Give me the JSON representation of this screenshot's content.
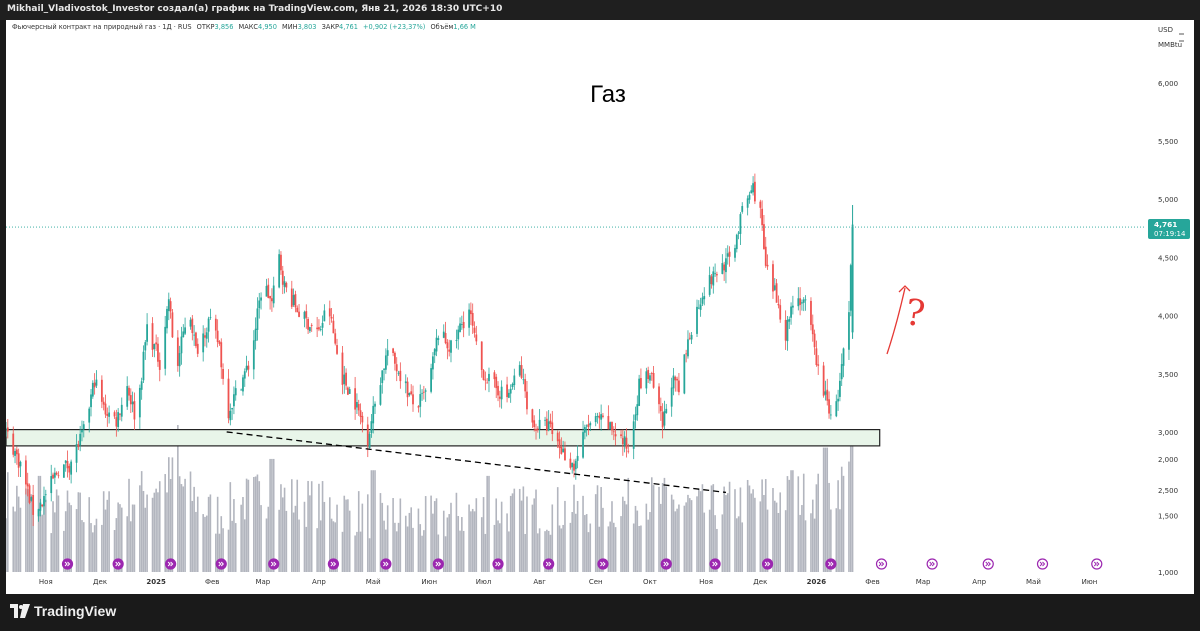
{
  "header": {
    "caption": "Mikhail_Vladivostok_Investor создал(а) график на TradingView.com, Янв 21, 2026 18:30 UTC+10"
  },
  "legend": {
    "symbol": "Фьючерсный контракт на природный газ · 1Д · RUS",
    "open_label": "ОТКР",
    "open_value": "3,856",
    "high_label": "МАКС",
    "high_value": "4,950",
    "low_label": "МИН",
    "low_value": "3,803",
    "close_label": "ЗАКР",
    "close_value": "4,761",
    "change": "+0,902 (+23,37%)",
    "volume_label": "Объём",
    "volume_value": "1,66 M"
  },
  "annotation": {
    "title": "Газ",
    "question_mark": "?"
  },
  "price_scale": {
    "currency": "USD",
    "unit": "MMBtu"
  },
  "last_price": {
    "value": "4,761",
    "countdown": "07:19:14",
    "color": "#26a69a"
  },
  "footer": {
    "brand": "TradingView"
  },
  "colors": {
    "up": "#26a69a",
    "down": "#ef5350",
    "volume": "#b2b5be",
    "zone_fill": "#e8f5e9",
    "arrow": "#e53935",
    "event_marker": "#9c27b0"
  },
  "icons": [
    "tradingview-logo-icon",
    "event-marker-icon"
  ],
  "chart_data": {
    "type": "candlestick",
    "title": "Газ",
    "y_range": [
      2.2,
      6.3
    ],
    "y_ticks": [
      "6,000",
      "5,500",
      "5,000",
      "4,500",
      "4,000",
      "3,500",
      "3,000",
      "2,500",
      "2,000",
      "1,500",
      "1,000"
    ],
    "x_range": [
      "2024-10-10",
      "2026-06-30"
    ],
    "x_ticks": [
      {
        "label": "Ноя",
        "date": "2024-11-01",
        "bold": false
      },
      {
        "label": "Дек",
        "date": "2024-12-01",
        "bold": false
      },
      {
        "label": "2025",
        "date": "2025-01-01",
        "bold": true
      },
      {
        "label": "Фев",
        "date": "2025-02-01",
        "bold": false
      },
      {
        "label": "Мар",
        "date": "2025-03-01",
        "bold": false
      },
      {
        "label": "Апр",
        "date": "2025-04-01",
        "bold": false
      },
      {
        "label": "Май",
        "date": "2025-05-01",
        "bold": false
      },
      {
        "label": "Июн",
        "date": "2025-06-01",
        "bold": false
      },
      {
        "label": "Июл",
        "date": "2025-07-01",
        "bold": false
      },
      {
        "label": "Авг",
        "date": "2025-08-01",
        "bold": false
      },
      {
        "label": "Сен",
        "date": "2025-09-01",
        "bold": false
      },
      {
        "label": "Окт",
        "date": "2025-10-01",
        "bold": false
      },
      {
        "label": "Ноя",
        "date": "2025-11-01",
        "bold": false
      },
      {
        "label": "Дек",
        "date": "2025-12-01",
        "bold": false
      },
      {
        "label": "2026",
        "date": "2026-01-01",
        "bold": true
      },
      {
        "label": "Фев",
        "date": "2026-02-01",
        "bold": false
      },
      {
        "label": "Мар",
        "date": "2026-03-01",
        "bold": false
      },
      {
        "label": "Апр",
        "date": "2026-04-01",
        "bold": false
      },
      {
        "label": "Май",
        "date": "2026-05-01",
        "bold": false
      },
      {
        "label": "Июн",
        "date": "2026-06-01",
        "bold": false
      }
    ],
    "price_path": [
      [
        "2024-10-10",
        3.0
      ],
      [
        "2024-10-18",
        2.72
      ],
      [
        "2024-10-25",
        2.32
      ],
      [
        "2024-10-30",
        2.4
      ],
      [
        "2024-11-08",
        2.68
      ],
      [
        "2024-11-14",
        2.72
      ],
      [
        "2024-11-22",
        3.0
      ],
      [
        "2024-11-28",
        3.45
      ],
      [
        "2024-12-03",
        3.2
      ],
      [
        "2024-12-10",
        3.1
      ],
      [
        "2024-12-16",
        3.4
      ],
      [
        "2024-12-21",
        3.1
      ],
      [
        "2024-12-27",
        3.9
      ],
      [
        "2025-01-03",
        3.6
      ],
      [
        "2025-01-08",
        4.15
      ],
      [
        "2025-01-12",
        3.5
      ],
      [
        "2025-01-19",
        4.1
      ],
      [
        "2025-01-23",
        3.7
      ],
      [
        "2025-01-30",
        3.95
      ],
      [
        "2025-02-05",
        3.75
      ],
      [
        "2025-02-09",
        3.15
      ],
      [
        "2025-02-16",
        3.4
      ],
      [
        "2025-02-22",
        3.6
      ],
      [
        "2025-03-01",
        4.3
      ],
      [
        "2025-03-06",
        4.1
      ],
      [
        "2025-03-10",
        4.5
      ],
      [
        "2025-03-13",
        4.25
      ],
      [
        "2025-03-22",
        4.0
      ],
      [
        "2025-04-01",
        3.85
      ],
      [
        "2025-04-06",
        4.1
      ],
      [
        "2025-04-13",
        3.5
      ],
      [
        "2025-04-20",
        3.3
      ],
      [
        "2025-04-28",
        2.95
      ],
      [
        "2025-05-04",
        3.4
      ],
      [
        "2025-05-09",
        3.7
      ],
      [
        "2025-05-16",
        3.5
      ],
      [
        "2025-05-24",
        3.2
      ],
      [
        "2025-05-31",
        3.35
      ],
      [
        "2025-06-06",
        3.85
      ],
      [
        "2025-06-14",
        3.7
      ],
      [
        "2025-06-18",
        3.9
      ],
      [
        "2025-06-23",
        4.05
      ],
      [
        "2025-06-29",
        3.55
      ],
      [
        "2025-07-06",
        3.4
      ],
      [
        "2025-07-14",
        3.3
      ],
      [
        "2025-07-21",
        3.55
      ],
      [
        "2025-07-28",
        3.05
      ],
      [
        "2025-08-06",
        3.05
      ],
      [
        "2025-08-13",
        2.85
      ],
      [
        "2025-08-20",
        2.7
      ],
      [
        "2025-08-27",
        3.05
      ],
      [
        "2025-09-03",
        3.1
      ],
      [
        "2025-09-12",
        3.0
      ],
      [
        "2025-09-19",
        2.85
      ],
      [
        "2025-09-25",
        3.4
      ],
      [
        "2025-10-01",
        3.5
      ],
      [
        "2025-10-08",
        3.05
      ],
      [
        "2025-10-13",
        3.45
      ],
      [
        "2025-10-17",
        3.35
      ],
      [
        "2025-10-23",
        3.85
      ],
      [
        "2025-10-30",
        4.2
      ],
      [
        "2025-11-08",
        4.4
      ],
      [
        "2025-11-15",
        4.5
      ],
      [
        "2025-11-22",
        4.95
      ],
      [
        "2025-11-27",
        5.1
      ],
      [
        "2025-12-01",
        4.9
      ],
      [
        "2025-12-04",
        4.4
      ],
      [
        "2025-12-10",
        4.15
      ],
      [
        "2025-12-15",
        3.85
      ],
      [
        "2025-12-20",
        4.2
      ],
      [
        "2025-12-27",
        4.05
      ],
      [
        "2026-01-03",
        3.45
      ],
      [
        "2026-01-07",
        3.25
      ],
      [
        "2026-01-11",
        3.1
      ],
      [
        "2026-01-15",
        3.55
      ],
      [
        "2026-01-19",
        4.0
      ],
      [
        "2026-01-21",
        4.76
      ]
    ],
    "support_zone": {
      "y_low": 2.88,
      "y_high": 3.02,
      "from": "2024-10-10",
      "to": "2026-02-05"
    },
    "trend_line": {
      "from": [
        "2025-02-09",
        3.0
      ],
      "to": [
        "2025-11-12",
        2.48
      ],
      "style": "dashed"
    },
    "last_price_line": 4.761,
    "volume_axis_range": [
      1.0,
      2.3
    ],
    "volume_path": [
      [
        "2024-10-10",
        1.7
      ],
      [
        "2024-11-01",
        1.55
      ],
      [
        "2024-12-01",
        1.5
      ],
      [
        "2025-01-10",
        1.85
      ],
      [
        "2025-02-01",
        1.5
      ],
      [
        "2025-03-01",
        1.7
      ],
      [
        "2025-04-01",
        1.6
      ],
      [
        "2025-05-01",
        1.5
      ],
      [
        "2025-06-01",
        1.45
      ],
      [
        "2025-07-01",
        1.55
      ],
      [
        "2025-08-01",
        1.55
      ],
      [
        "2025-09-01",
        1.55
      ],
      [
        "2025-10-01",
        1.65
      ],
      [
        "2025-11-01",
        1.55
      ],
      [
        "2025-12-01",
        1.65
      ],
      [
        "2026-01-10",
        1.7
      ],
      [
        "2026-01-21",
        1.9
      ]
    ],
    "volume_spikes": [
      [
        "2024-10-28",
        1.85
      ],
      [
        "2025-01-12",
        2.3
      ],
      [
        "2025-03-06",
        2.0
      ],
      [
        "2025-05-01",
        1.9
      ],
      [
        "2025-07-04",
        1.85
      ],
      [
        "2025-12-19",
        1.9
      ],
      [
        "2026-01-06",
        2.1
      ],
      [
        "2026-01-21",
        2.15
      ]
    ],
    "event_marker_dates": [
      "2024-11-13",
      "2024-12-11",
      "2025-01-09",
      "2025-02-06",
      "2025-03-07",
      "2025-04-09",
      "2025-05-08",
      "2025-06-06",
      "2025-07-09",
      "2025-08-06",
      "2025-09-05",
      "2025-10-10",
      "2025-11-06",
      "2025-12-05",
      "2026-01-09",
      "2026-02-06",
      "2026-03-06",
      "2026-04-06",
      "2026-05-06",
      "2026-06-05"
    ]
  }
}
